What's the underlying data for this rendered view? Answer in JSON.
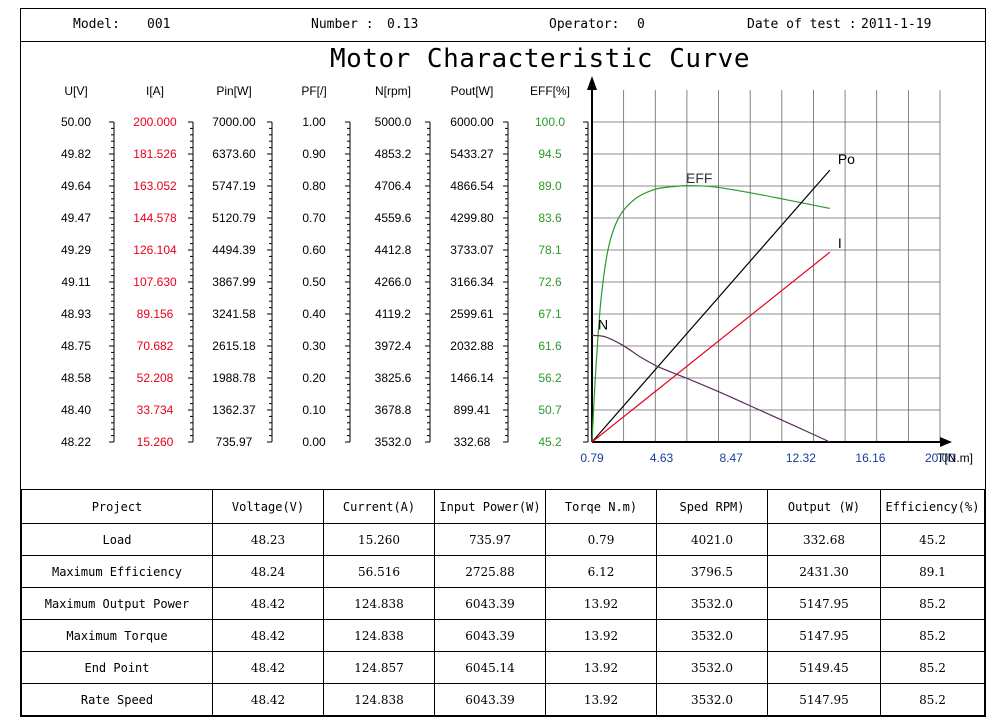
{
  "header": {
    "model_label": "Model:",
    "model_value": "001",
    "number_label": "Number :",
    "number_value": "0.13",
    "operator_label": "Operator:",
    "operator_value": "0",
    "date_label": "Date of test :",
    "date_value": "2011-1-19"
  },
  "title": "Motor Characteristic Curve",
  "colors": {
    "red": "#e8001c",
    "green": "#2a9a2a",
    "black": "#000000",
    "purple": "#5a2a5a",
    "grid": "#666666"
  },
  "scales": [
    {
      "label": "U[V]",
      "color": "black",
      "values": [
        "50.00",
        "49.82",
        "49.64",
        "49.47",
        "49.29",
        "49.11",
        "48.93",
        "48.75",
        "48.58",
        "48.40",
        "48.22"
      ]
    },
    {
      "label": "I[A]",
      "color": "red",
      "values": [
        "200.000",
        "181.526",
        "163.052",
        "144.578",
        "126.104",
        "107.630",
        "89.156",
        "70.682",
        "52.208",
        "33.734",
        "15.260"
      ]
    },
    {
      "label": "Pin[W]",
      "color": "black",
      "values": [
        "7000.00",
        "6373.60",
        "5747.19",
        "5120.79",
        "4494.39",
        "3867.99",
        "3241.58",
        "2615.18",
        "1988.78",
        "1362.37",
        "735.97"
      ]
    },
    {
      "label": "PF[/]",
      "color": "black",
      "values": [
        "1.00",
        "0.90",
        "0.80",
        "0.70",
        "0.60",
        "0.50",
        "0.40",
        "0.30",
        "0.20",
        "0.10",
        "0.00"
      ]
    },
    {
      "label": "N[rpm]",
      "color": "black",
      "values": [
        "5000.0",
        "4853.2",
        "4706.4",
        "4559.6",
        "4412.8",
        "4266.0",
        "4119.2",
        "3972.4",
        "3825.6",
        "3678.8",
        "3532.0"
      ]
    },
    {
      "label": "Pout[W]",
      "color": "black",
      "values": [
        "6000.00",
        "5433.27",
        "4866.54",
        "4299.80",
        "3733.07",
        "3166.34",
        "2599.61",
        "2032.88",
        "1466.14",
        "899.41",
        "332.68"
      ]
    },
    {
      "label": "EFF[%]",
      "color": "green",
      "values": [
        "100.0",
        "94.5",
        "89.0",
        "83.6",
        "78.1",
        "72.6",
        "67.1",
        "61.6",
        "56.2",
        "50.7",
        "45.2"
      ]
    }
  ],
  "chart_data": {
    "type": "line",
    "title": "Motor Characteristic Curve",
    "xlabel": "T[N.m]",
    "x_ticks": [
      "0.79",
      "4.63",
      "8.47",
      "12.32",
      "16.16",
      "20.00"
    ],
    "xlim": [
      0.79,
      20.0
    ],
    "grid": true,
    "series": [
      {
        "name": "EFF",
        "unit": "%",
        "color": "green",
        "x": [
          0.79,
          0.9,
          1.05,
          1.3,
          1.7,
          2.3,
          3.2,
          4.3,
          5.5,
          6.12,
          7.5,
          9.5,
          11.5,
          13.92
        ],
        "y": [
          45.2,
          52,
          60,
          70,
          78.5,
          83.8,
          86.9,
          88.5,
          89.0,
          89.1,
          88.9,
          87.9,
          86.7,
          85.2
        ]
      },
      {
        "name": "Po",
        "unit": "W",
        "color": "black",
        "x": [
          0.79,
          13.92
        ],
        "y": [
          332.68,
          5147.95
        ]
      },
      {
        "name": "I",
        "unit": "A",
        "color": "red",
        "x": [
          0.79,
          13.92
        ],
        "y": [
          15.26,
          124.838
        ]
      },
      {
        "name": "N",
        "unit": "rpm",
        "color": "purple",
        "x": [
          0.79,
          1.5,
          2.5,
          3.5,
          4.5,
          6.0,
          8.0,
          10.0,
          12.0,
          13.92
        ],
        "y": [
          4021.0,
          4015,
          3975,
          3920,
          3875,
          3825,
          3755,
          3680,
          3605,
          3532.0
        ]
      }
    ]
  },
  "table": {
    "headers": [
      "Project",
      "Voltage(V)",
      "Current(A)",
      "Input Power(W)",
      "Torqe N.m)",
      "Sped RPM)",
      "Output (W)",
      "Efficiency(%)"
    ],
    "rows": [
      [
        "Load",
        "48.23",
        "15.260",
        "735.97",
        "0.79",
        "4021.0",
        "332.68",
        "45.2"
      ],
      [
        "Maximum Efficiency",
        "48.24",
        "56.516",
        "2725.88",
        "6.12",
        "3796.5",
        "2431.30",
        "89.1"
      ],
      [
        "Maximum Output Power",
        "48.42",
        "124.838",
        "6043.39",
        "13.92",
        "3532.0",
        "5147.95",
        "85.2"
      ],
      [
        "Maximum Torque",
        "48.42",
        "124.838",
        "6043.39",
        "13.92",
        "3532.0",
        "5147.95",
        "85.2"
      ],
      [
        "End Point",
        "48.42",
        "124.857",
        "6045.14",
        "13.92",
        "3532.0",
        "5149.45",
        "85.2"
      ],
      [
        "Rate Speed",
        "48.42",
        "124.838",
        "6043.39",
        "13.92",
        "3532.0",
        "5147.95",
        "85.2"
      ]
    ]
  }
}
